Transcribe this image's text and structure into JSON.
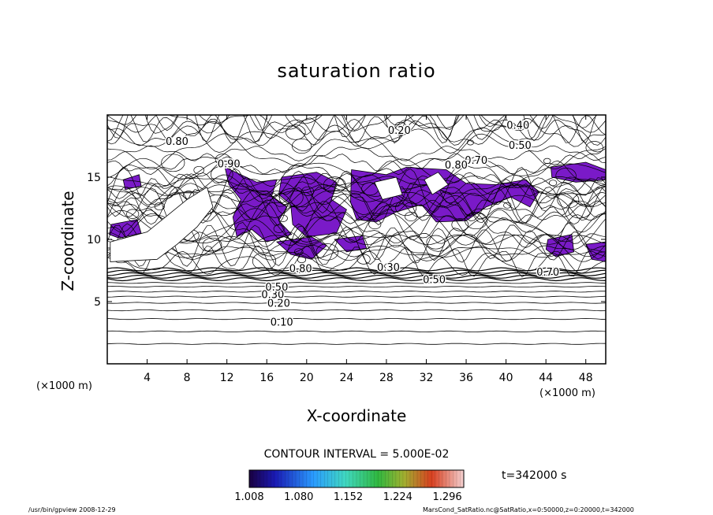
{
  "chart_data": {
    "type": "contour",
    "title": "saturation ratio",
    "xlabel": "X-coordinate",
    "ylabel": "Z-coordinate",
    "x_unit": "(×1000 m)",
    "xlim": [
      0,
      50
    ],
    "ylim": [
      0,
      20
    ],
    "x_ticks": [
      4,
      8,
      12,
      16,
      20,
      24,
      28,
      32,
      36,
      40,
      44,
      48
    ],
    "y_ticks": [
      5,
      10,
      15
    ],
    "contour_interval_label": "CONTOUR INTERVAL = 5.000E-02",
    "contour_labels": [
      "0.10",
      "0.20",
      "0.30",
      "0.40",
      "0.50",
      "0.70",
      "0.80",
      "0.90"
    ],
    "colorbar": {
      "ticks": [
        "1.008",
        "1.080",
        "1.152",
        "1.224",
        "1.296"
      ],
      "range": [
        1.008,
        1.32
      ]
    },
    "time_label": "t=342000 s",
    "footer_left": "/usr/bin/gpview  2008-12-29",
    "footer_right": "MarsCond_SatRatio.nc@SatRatio,x=0:50000,z=0:20000,t=342000",
    "fill_color": "#7a1ac8",
    "grid": false
  }
}
